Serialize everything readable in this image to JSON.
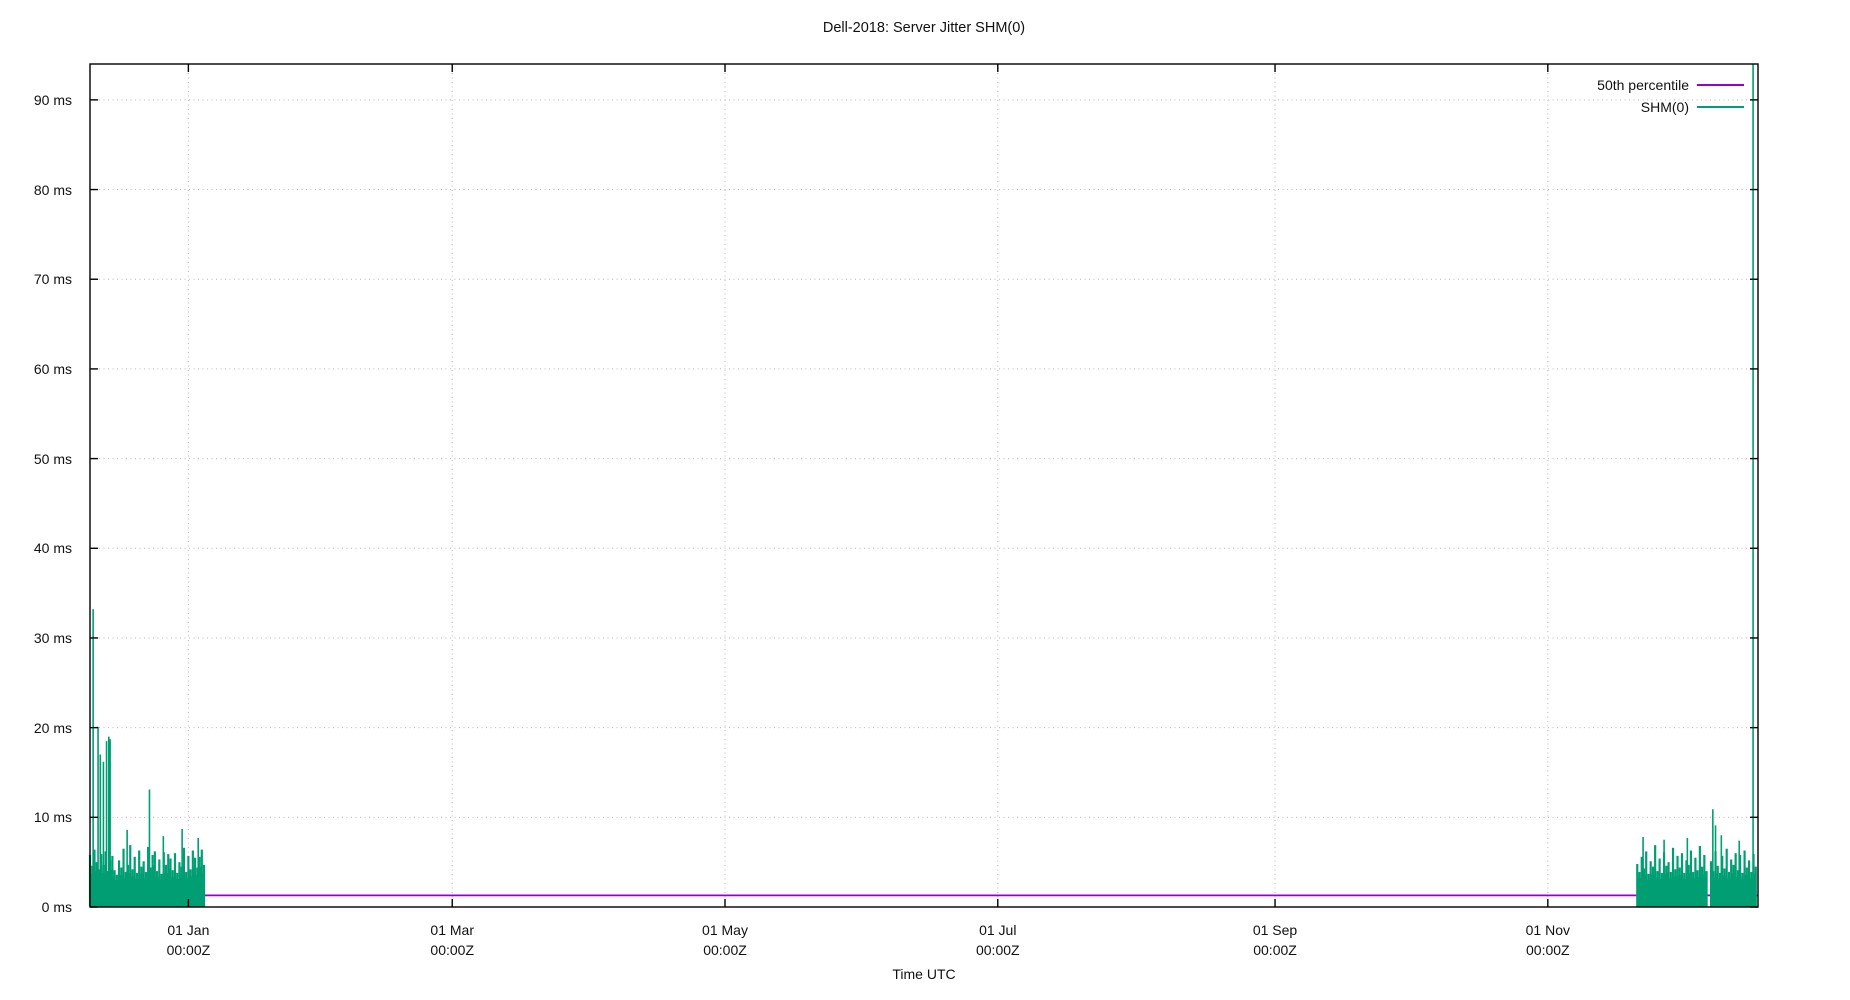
{
  "colors": {
    "background": "#ffffff",
    "text": "#111111",
    "axis": "#000000",
    "grid": "#b8b8b8",
    "percentile_purple": "#9400d3",
    "shm_green": "#009e73"
  },
  "chart_data": {
    "type": "line",
    "title": "Dell-2018: Server Jitter SHM(0)",
    "xlabel": "Time UTC",
    "ylabel": "",
    "y_unit": "ms",
    "ylim": [
      0,
      94
    ],
    "grid": true,
    "legend_position": "inside-top-right",
    "y_ticks": [
      {
        "label": "0 ms",
        "value": 0
      },
      {
        "label": "10 ms",
        "value": 10
      },
      {
        "label": "20 ms",
        "value": 20
      },
      {
        "label": "30 ms",
        "value": 30
      },
      {
        "label": "40 ms",
        "value": 40
      },
      {
        "label": "50 ms",
        "value": 50
      },
      {
        "label": "60 ms",
        "value": 60
      },
      {
        "label": "70 ms",
        "value": 70
      },
      {
        "label": "80 ms",
        "value": 80
      },
      {
        "label": "90 ms",
        "value": 90
      }
    ],
    "x_domain_days": [
      0,
      373
    ],
    "x_domain_note": "day 0 = left edge (~10 Dec 2017), day 373 = right edge (~18 Dec 2018)",
    "x_ticks": [
      {
        "line1": "01 Jan",
        "line2": "00:00Z",
        "day": 22
      },
      {
        "line1": "01 Mar",
        "line2": "00:00Z",
        "day": 81
      },
      {
        "line1": "01 May",
        "line2": "00:00Z",
        "day": 142
      },
      {
        "line1": "01 Jul",
        "line2": "00:00Z",
        "day": 203
      },
      {
        "line1": "01 Sep",
        "line2": "00:00Z",
        "day": 265
      },
      {
        "line1": "01 Nov",
        "line2": "00:00Z",
        "day": 326
      }
    ],
    "legend": [
      {
        "label": "50th percentile",
        "color": "#9400d3"
      },
      {
        "label": "SHM(0)",
        "color": "#009e73"
      }
    ],
    "series": [
      {
        "name": "50th percentile",
        "style": "horizontal-line",
        "color": "#9400d3",
        "value_ms": 1.3,
        "day_start": 0,
        "day_end": 373
      },
      {
        "name": "SHM(0)",
        "style": "impulse-clusters",
        "color": "#009e73",
        "clusters": [
          {
            "day_start": 0,
            "step_days": 0.5,
            "values_ms": [
              5.8,
              4.6,
              6.4,
              5.0,
              4.2,
              5.9,
              4.7,
              6.2,
              4.0,
              5.2,
              5.7,
              4.1,
              3.6,
              5.2,
              4.4,
              6.5,
              3.9,
              4.7,
              6.9,
              4.2,
              5.6,
              3.8,
              6.3,
              4.5,
              5.1,
              3.9,
              6.7,
              4.4,
              5.8,
              6.2,
              4.0,
              5.3,
              3.7,
              6.1,
              4.7,
              5.9,
              5.4,
              4.1,
              6.0,
              3.8,
              5.0,
              4.5,
              6.6,
              3.9,
              5.7,
              4.2,
              6.3,
              5.5,
              4.4,
              5.6,
              6.4,
              4.7
            ]
          },
          {
            "day_start": 346,
            "step_days": 0.5,
            "values_ms": [
              4.8,
              3.9,
              5.6,
              4.3,
              6.2,
              3.7,
              5.1,
              4.5,
              6.9,
              4.0,
              5.4,
              3.8,
              6.1,
              4.6,
              5.0,
              3.9,
              6.6,
              4.2,
              5.7,
              4.4,
              6.0,
              3.8,
              5.2,
              4.7,
              6.3,
              3.9,
              5.5,
              4.1,
              6.8,
              4.5,
              5.8,
              4.0
            ]
          },
          {
            "day_start": 362.5,
            "step_days": 0.5,
            "values_ms": [
              5.1,
              4.0,
              6.2,
              4.6,
              3.8,
              5.7,
              4.3,
              6.5,
              3.9,
              5.3,
              4.7,
              6.0,
              4.1,
              5.8,
              3.8,
              6.3,
              4.4,
              5.2,
              3.9,
              5.9,
              4.5
            ]
          }
        ],
        "spikes": [
          {
            "day": 0.7,
            "ms": 33.2
          },
          {
            "day": 1.8,
            "ms": 20.1
          },
          {
            "day": 2.3,
            "ms": 17.0
          },
          {
            "day": 3.0,
            "ms": 16.2
          },
          {
            "day": 3.7,
            "ms": 18.5
          },
          {
            "day": 4.2,
            "ms": 19.0
          },
          {
            "day": 4.5,
            "ms": 18.7
          },
          {
            "day": 8.3,
            "ms": 8.6
          },
          {
            "day": 13.3,
            "ms": 13.1
          },
          {
            "day": 16.4,
            "ms": 7.9
          },
          {
            "day": 20.6,
            "ms": 8.7
          },
          {
            "day": 24.2,
            "ms": 7.7
          },
          {
            "day": 347.3,
            "ms": 7.8
          },
          {
            "day": 352.0,
            "ms": 7.5
          },
          {
            "day": 357.2,
            "ms": 7.7
          },
          {
            "day": 362.9,
            "ms": 10.9
          },
          {
            "day": 363.5,
            "ms": 9.1
          },
          {
            "day": 364.8,
            "ms": 8.0
          },
          {
            "day": 368.8,
            "ms": 7.4
          },
          {
            "day": 371.9,
            "ms": 94.0
          }
        ]
      }
    ]
  }
}
